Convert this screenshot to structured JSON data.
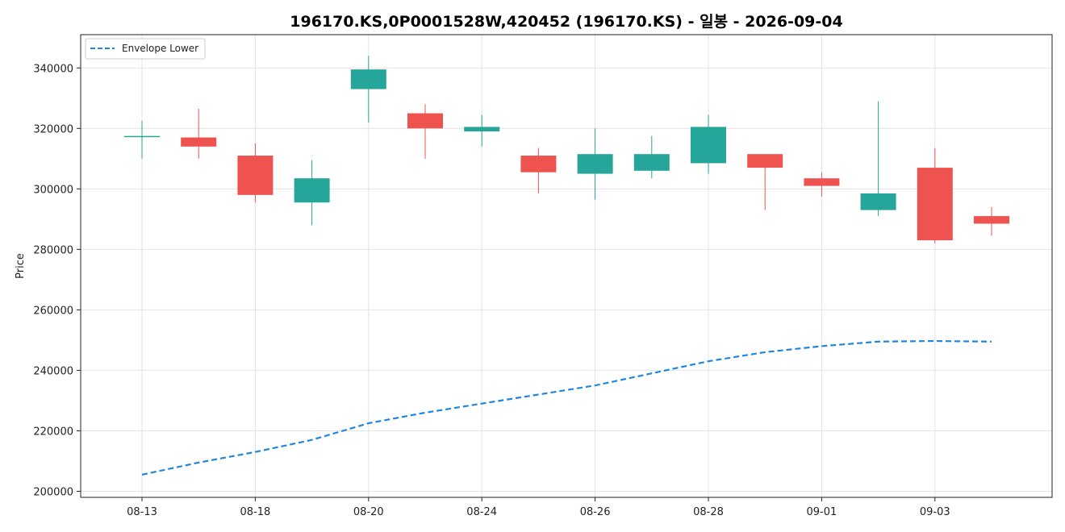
{
  "chart_data": {
    "type": "candlestick",
    "title": "196170.KS,0P0001528W,420452 (196170.KS) - 일봉 - 2026-09-04",
    "ylabel": "Price",
    "xlabel": "",
    "ylim": [
      198000,
      351000
    ],
    "yticks": [
      200000,
      220000,
      240000,
      260000,
      280000,
      300000,
      320000,
      340000
    ],
    "ytick_labels": [
      "200000",
      "220000",
      "240000",
      "260000",
      "280000",
      "300000",
      "320000",
      "340000"
    ],
    "x_dates": [
      "08-13",
      "08-14",
      "08-18",
      "08-19",
      "08-20",
      "08-21",
      "08-24",
      "08-25",
      "08-26",
      "08-27",
      "08-28",
      "08-31",
      "09-01",
      "09-02",
      "09-03",
      "09-04"
    ],
    "xtick_labels": [
      "08-13",
      "08-18",
      "08-20",
      "08-24",
      "08-26",
      "08-28",
      "09-01",
      "09-03"
    ],
    "candles": [
      {
        "date": "08-13",
        "open": 317500,
        "high": 322500,
        "low": 310000,
        "close": 317500
      },
      {
        "date": "08-14",
        "open": 317000,
        "high": 326500,
        "low": 310000,
        "close": 314000
      },
      {
        "date": "08-18",
        "open": 311000,
        "high": 315000,
        "low": 295500,
        "close": 298000
      },
      {
        "date": "08-19",
        "open": 295500,
        "high": 309500,
        "low": 288000,
        "close": 303500
      },
      {
        "date": "08-20",
        "open": 333000,
        "high": 344000,
        "low": 322000,
        "close": 339500
      },
      {
        "date": "08-21",
        "open": 325000,
        "high": 328000,
        "low": 310000,
        "close": 320000
      },
      {
        "date": "08-24",
        "open": 319000,
        "high": 324500,
        "low": 314000,
        "close": 320500
      },
      {
        "date": "08-25",
        "open": 311000,
        "high": 313500,
        "low": 298500,
        "close": 305500
      },
      {
        "date": "08-26",
        "open": 305000,
        "high": 320000,
        "low": 296500,
        "close": 311500
      },
      {
        "date": "08-27",
        "open": 306000,
        "high": 317500,
        "low": 303500,
        "close": 311500
      },
      {
        "date": "08-28",
        "open": 308500,
        "high": 324500,
        "low": 305000,
        "close": 320500
      },
      {
        "date": "08-31",
        "open": 311500,
        "high": 311500,
        "low": 293000,
        "close": 307000
      },
      {
        "date": "09-01",
        "open": 303500,
        "high": 305500,
        "low": 297500,
        "close": 301000
      },
      {
        "date": "09-02",
        "open": 293000,
        "high": 329000,
        "low": 291000,
        "close": 298500
      },
      {
        "date": "09-03",
        "open": 307000,
        "high": 313500,
        "low": 282000,
        "close": 283000
      },
      {
        "date": "09-04",
        "open": 291000,
        "high": 294000,
        "low": 284500,
        "close": 288500
      }
    ],
    "series": [
      {
        "name": "Envelope Lower",
        "style": "dashed",
        "color": "#1f86e0",
        "values": [
          205500,
          209500,
          213000,
          217000,
          222500,
          226000,
          229000,
          232000,
          235000,
          239000,
          243000,
          246000,
          248000,
          249500,
          249700,
          249500
        ]
      }
    ],
    "up_color": "#26a69a",
    "down_color": "#ef5350",
    "grid": true,
    "legend_position": "top-left"
  }
}
